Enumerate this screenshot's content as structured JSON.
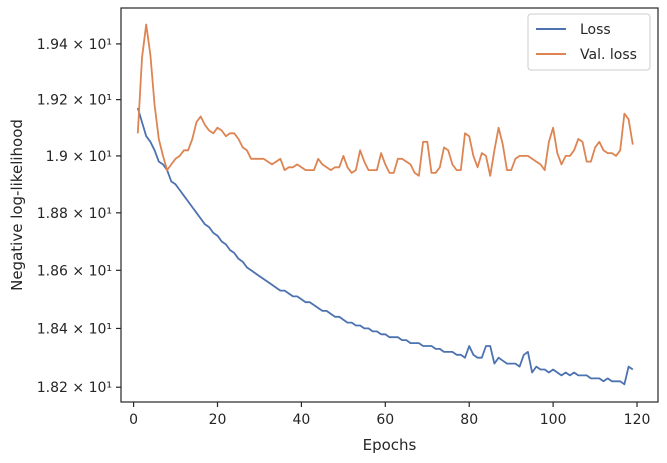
{
  "chart_data": {
    "type": "line",
    "xlabel": "Epochs",
    "ylabel": "Negative log-likelihood",
    "xlim": [
      -3,
      125
    ],
    "ylim": [
      18.15,
      19.53
    ],
    "yscale": "log",
    "grid": false,
    "legend_position": "top-right",
    "xticks": [
      0,
      20,
      40,
      60,
      80,
      100,
      120
    ],
    "xtick_labels": [
      "0",
      "20",
      "40",
      "60",
      "80",
      "100",
      "120"
    ],
    "yticks": [
      18.2,
      18.4,
      18.6,
      18.8,
      19.0,
      19.2,
      19.4
    ],
    "ytick_labels": [
      "1.82 × 10¹",
      "1.84 × 10¹",
      "1.86 × 10¹",
      "1.88 × 10¹",
      "1.9 × 10¹",
      "1.92 × 10¹",
      "1.94 × 10¹"
    ],
    "x": [
      1,
      2,
      3,
      4,
      5,
      6,
      7,
      8,
      9,
      10,
      11,
      12,
      13,
      14,
      15,
      16,
      17,
      18,
      19,
      20,
      21,
      22,
      23,
      24,
      25,
      26,
      27,
      28,
      29,
      30,
      31,
      32,
      33,
      34,
      35,
      36,
      37,
      38,
      39,
      40,
      41,
      42,
      43,
      44,
      45,
      46,
      47,
      48,
      49,
      50,
      51,
      52,
      53,
      54,
      55,
      56,
      57,
      58,
      59,
      60,
      61,
      62,
      63,
      64,
      65,
      66,
      67,
      68,
      69,
      70,
      71,
      72,
      73,
      74,
      75,
      76,
      77,
      78,
      79,
      80,
      81,
      82,
      83,
      84,
      85,
      86,
      87,
      88,
      89,
      90,
      91,
      92,
      93,
      94,
      95,
      96,
      97,
      98,
      99,
      100,
      101,
      102,
      103,
      104,
      105,
      106,
      107,
      108,
      109,
      110,
      111,
      112,
      113,
      114,
      115,
      116,
      117,
      118,
      119
    ],
    "series": [
      {
        "name": "Loss",
        "color": "#4c72b0",
        "values": [
          19.17,
          19.12,
          19.07,
          19.05,
          19.02,
          18.98,
          18.97,
          18.95,
          18.91,
          18.9,
          18.88,
          18.86,
          18.84,
          18.82,
          18.8,
          18.78,
          18.76,
          18.75,
          18.73,
          18.72,
          18.7,
          18.69,
          18.67,
          18.66,
          18.64,
          18.63,
          18.61,
          18.6,
          18.59,
          18.58,
          18.57,
          18.56,
          18.55,
          18.54,
          18.53,
          18.53,
          18.52,
          18.51,
          18.51,
          18.5,
          18.49,
          18.49,
          18.48,
          18.47,
          18.46,
          18.46,
          18.45,
          18.44,
          18.44,
          18.43,
          18.42,
          18.42,
          18.41,
          18.41,
          18.4,
          18.4,
          18.39,
          18.39,
          18.38,
          18.38,
          18.37,
          18.37,
          18.37,
          18.36,
          18.36,
          18.35,
          18.35,
          18.35,
          18.34,
          18.34,
          18.34,
          18.33,
          18.33,
          18.32,
          18.32,
          18.32,
          18.31,
          18.31,
          18.3,
          18.34,
          18.31,
          18.3,
          18.3,
          18.34,
          18.34,
          18.28,
          18.3,
          18.29,
          18.28,
          18.28,
          18.28,
          18.27,
          18.31,
          18.32,
          18.25,
          18.27,
          18.26,
          18.26,
          18.25,
          18.26,
          18.25,
          18.24,
          18.25,
          18.24,
          18.25,
          18.24,
          18.24,
          18.24,
          18.23,
          18.23,
          18.23,
          18.22,
          18.23,
          18.22,
          18.22,
          18.22,
          18.21,
          18.27,
          18.26
        ]
      },
      {
        "name": "Val. loss",
        "color": "#dd8452",
        "values": [
          19.08,
          19.35,
          19.47,
          19.36,
          19.18,
          19.06,
          19.0,
          18.95,
          18.97,
          18.99,
          19.0,
          19.02,
          19.02,
          19.06,
          19.12,
          19.14,
          19.11,
          19.09,
          19.08,
          19.1,
          19.09,
          19.07,
          19.08,
          19.08,
          19.06,
          19.03,
          19.02,
          18.99,
          18.99,
          18.99,
          18.99,
          18.98,
          18.97,
          18.98,
          18.99,
          18.95,
          18.96,
          18.96,
          18.97,
          18.96,
          18.95,
          18.95,
          18.95,
          18.99,
          18.97,
          18.96,
          18.95,
          18.96,
          18.96,
          19.0,
          18.96,
          18.94,
          18.95,
          19.02,
          18.98,
          18.95,
          18.95,
          18.95,
          19.01,
          18.97,
          18.94,
          18.94,
          18.99,
          18.99,
          18.98,
          18.97,
          18.94,
          18.93,
          19.05,
          19.05,
          18.94,
          18.94,
          18.96,
          19.03,
          19.02,
          18.97,
          18.95,
          18.95,
          19.08,
          19.07,
          19.0,
          18.96,
          19.01,
          19.0,
          18.93,
          19.02,
          19.1,
          19.04,
          18.95,
          18.95,
          18.99,
          19.0,
          19.0,
          19.0,
          18.99,
          18.98,
          18.97,
          18.95,
          19.05,
          19.1,
          19.01,
          18.97,
          19.0,
          19.0,
          19.02,
          19.06,
          19.05,
          18.98,
          18.98,
          19.03,
          19.05,
          19.02,
          19.01,
          19.01,
          19.0,
          19.02,
          19.15,
          19.13,
          19.04
        ]
      }
    ]
  }
}
